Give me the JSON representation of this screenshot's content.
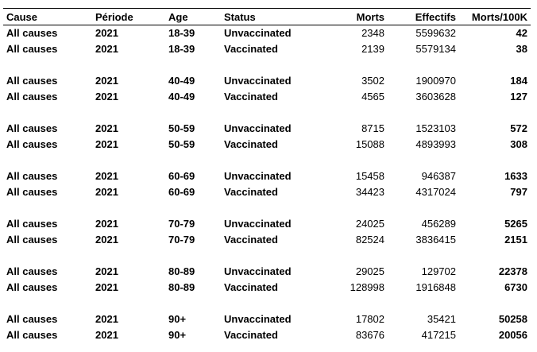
{
  "headers": {
    "cause": "Cause",
    "periode": "Période",
    "age": "Age",
    "status": "Status",
    "morts": "Morts",
    "effectifs": "Effectifs",
    "rate": "Morts/100K"
  },
  "groups": [
    {
      "rows": [
        {
          "cause": "All causes",
          "periode": "2021",
          "age": "18-39",
          "status": "Unvaccinated",
          "morts": "2348",
          "effectifs": "5599632",
          "rate": "42"
        },
        {
          "cause": "All causes",
          "periode": "2021",
          "age": "18-39",
          "status": "Vaccinated",
          "morts": "2139",
          "effectifs": "5579134",
          "rate": "38"
        }
      ]
    },
    {
      "rows": [
        {
          "cause": "All causes",
          "periode": "2021",
          "age": "40-49",
          "status": "Unvaccinated",
          "morts": "3502",
          "effectifs": "1900970",
          "rate": "184"
        },
        {
          "cause": "All causes",
          "periode": "2021",
          "age": "40-49",
          "status": "Vaccinated",
          "morts": "4565",
          "effectifs": "3603628",
          "rate": "127"
        }
      ]
    },
    {
      "rows": [
        {
          "cause": "All causes",
          "periode": "2021",
          "age": "50-59",
          "status": "Unvaccinated",
          "morts": "8715",
          "effectifs": "1523103",
          "rate": "572"
        },
        {
          "cause": "All causes",
          "periode": "2021",
          "age": "50-59",
          "status": "Vaccinated",
          "morts": "15088",
          "effectifs": "4893993",
          "rate": "308"
        }
      ]
    },
    {
      "rows": [
        {
          "cause": "All causes",
          "periode": "2021",
          "age": "60-69",
          "status": "Unvaccinated",
          "morts": "15458",
          "effectifs": "946387",
          "rate": "1633"
        },
        {
          "cause": "All causes",
          "periode": "2021",
          "age": "60-69",
          "status": "Vaccinated",
          "morts": "34423",
          "effectifs": "4317024",
          "rate": "797"
        }
      ]
    },
    {
      "rows": [
        {
          "cause": "All causes",
          "periode": "2021",
          "age": "70-79",
          "status": "Unvaccinated",
          "morts": "24025",
          "effectifs": "456289",
          "rate": "5265"
        },
        {
          "cause": "All causes",
          "periode": "2021",
          "age": "70-79",
          "status": "Vaccinated",
          "morts": "82524",
          "effectifs": "3836415",
          "rate": "2151"
        }
      ]
    },
    {
      "rows": [
        {
          "cause": "All causes",
          "periode": "2021",
          "age": "80-89",
          "status": "Unvaccinated",
          "morts": "29025",
          "effectifs": "129702",
          "rate": "22378"
        },
        {
          "cause": "All causes",
          "periode": "2021",
          "age": "80-89",
          "status": "Vaccinated",
          "morts": "128998",
          "effectifs": "1916848",
          "rate": "6730"
        }
      ]
    },
    {
      "rows": [
        {
          "cause": "All causes",
          "periode": "2021",
          "age": "90+",
          "status": "Unvaccinated",
          "morts": "17802",
          "effectifs": "35421",
          "rate": "50258"
        },
        {
          "cause": "All causes",
          "periode": "2021",
          "age": "90+",
          "status": "Vaccinated",
          "morts": "83676",
          "effectifs": "417215",
          "rate": "20056"
        }
      ]
    }
  ]
}
